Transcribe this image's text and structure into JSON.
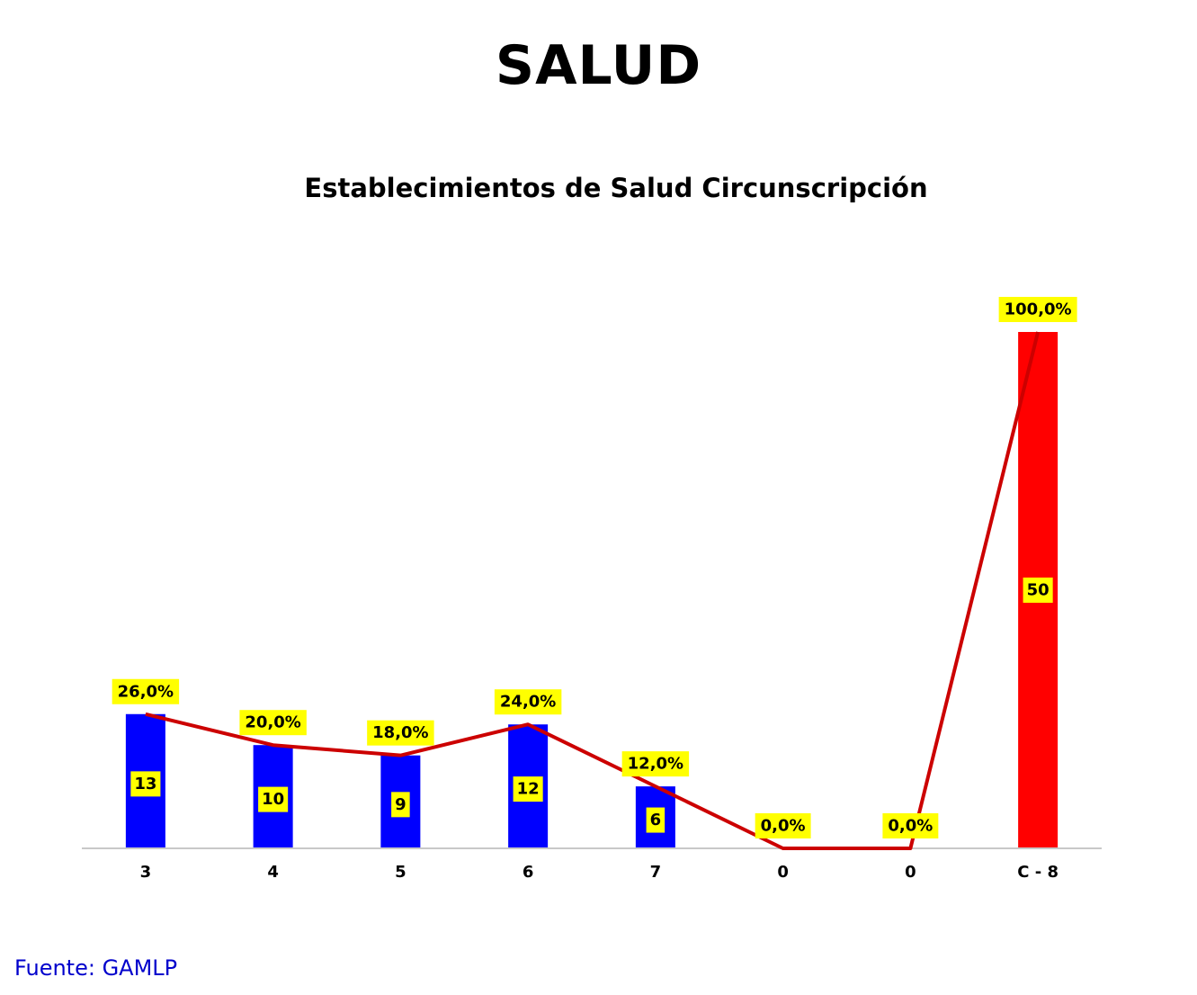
{
  "page": {
    "title": "SALUD",
    "source": "Fuente:  GAMLP"
  },
  "colors": {
    "bar": "#0000FF",
    "highlight_bar": "#FF0000",
    "line": "#CC0000",
    "label_bg": "#FFFF00",
    "axis": "#C8C8C8",
    "source_text": "#0000CC"
  },
  "chart_data": {
    "type": "bar",
    "title": "Establecimientos de Salud Circunscripción",
    "xlabel": "",
    "ylabel": "",
    "grid": false,
    "categories": [
      "3",
      "4",
      "5",
      "6",
      "7",
      "0",
      "0",
      "C - 8"
    ],
    "series": [
      {
        "kind": "bar",
        "values": [
          13,
          10,
          9,
          12,
          6,
          0,
          0,
          50
        ],
        "value_labels": [
          "13",
          "10",
          "9",
          "12",
          "6",
          "",
          "",
          "50"
        ],
        "highlight_index": 7
      },
      {
        "kind": "line",
        "values": [
          26.0,
          20.0,
          18.0,
          24.0,
          12.0,
          0.0,
          0.0,
          100.0
        ],
        "value_labels": [
          "26,0%",
          "20,0%",
          "18,0%",
          "24,0%",
          "12,0%",
          "0,0%",
          "0,0%",
          "100,0%"
        ]
      }
    ],
    "bar_ylim": [
      0,
      50
    ],
    "line_ylim": [
      0,
      100
    ]
  }
}
